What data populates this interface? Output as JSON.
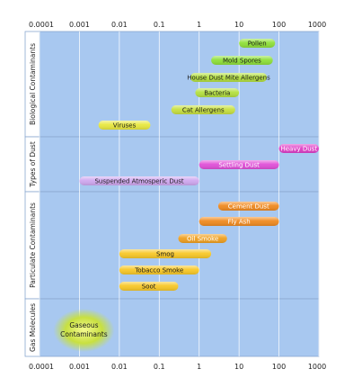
{
  "chart_data": {
    "type": "bar",
    "orientation": "horizontal-range",
    "x_scale": "log",
    "xlim": [
      0.0001,
      1000
    ],
    "x_ticks": [
      "0.0001",
      "0.001",
      "0.01",
      "0.1",
      "1",
      "10",
      "100",
      "1000"
    ],
    "x_tick_values": [
      0.0001,
      0.001,
      0.01,
      0.1,
      1,
      10,
      100,
      1000
    ],
    "grid": true,
    "groups": [
      {
        "name": "Biological Contaminants",
        "items": [
          {
            "label": "Pollen",
            "from": 10,
            "to": 80,
            "color": "#8fe03a"
          },
          {
            "label": "Mold Spores",
            "from": 2,
            "to": 70,
            "color": "#8fe03a"
          },
          {
            "label": "House Dust Mite Allergens",
            "from": 0.6,
            "to": 50,
            "color": "#b4e040"
          },
          {
            "label": "Bacteria",
            "from": 0.8,
            "to": 10,
            "color": "#b4e040"
          },
          {
            "label": "Cat Allergens",
            "from": 0.2,
            "to": 8,
            "color": "#c8e040"
          },
          {
            "label": "Viruses",
            "from": 0.003,
            "to": 0.06,
            "color": "#e8e840"
          }
        ]
      },
      {
        "name": "Types of Dust",
        "items": [
          {
            "label": "Heavy Dust",
            "from": 100,
            "to": 1000,
            "color": "#e040c8"
          },
          {
            "label": "Settling Dust",
            "from": 1,
            "to": 100,
            "color": "#e050d8"
          },
          {
            "label": "Suspended Atmosperic Dust",
            "from": 0.001,
            "to": 1,
            "color": "#d0a8f0"
          }
        ]
      },
      {
        "name": "Particulate Contaminants",
        "items": [
          {
            "label": "Cement Dust",
            "from": 3,
            "to": 100,
            "color": "#f08a20"
          },
          {
            "label": "Fly Ash",
            "from": 1,
            "to": 100,
            "color": "#f08a20"
          },
          {
            "label": "Oil Smoke",
            "from": 0.3,
            "to": 5,
            "color": "#f0a020"
          },
          {
            "label": "Smog",
            "from": 0.01,
            "to": 2,
            "color": "#f8c828"
          },
          {
            "label": "Tobacco Smoke",
            "from": 0.01,
            "to": 1,
            "color": "#f8c828"
          },
          {
            "label": "Soot",
            "from": 0.01,
            "to": 0.3,
            "color": "#f8c828"
          }
        ]
      },
      {
        "name": "Gas Molecules",
        "items": [
          {
            "label": "Gaseous Contaminants",
            "from": 0.0003,
            "to": 0.003,
            "color": "#c8e040"
          }
        ]
      }
    ],
    "colors": {
      "panel": "#a8c8f0",
      "panel_alt": "#b8d4f4",
      "gridline": "#ffffff",
      "border": "#8aa8d0"
    }
  }
}
